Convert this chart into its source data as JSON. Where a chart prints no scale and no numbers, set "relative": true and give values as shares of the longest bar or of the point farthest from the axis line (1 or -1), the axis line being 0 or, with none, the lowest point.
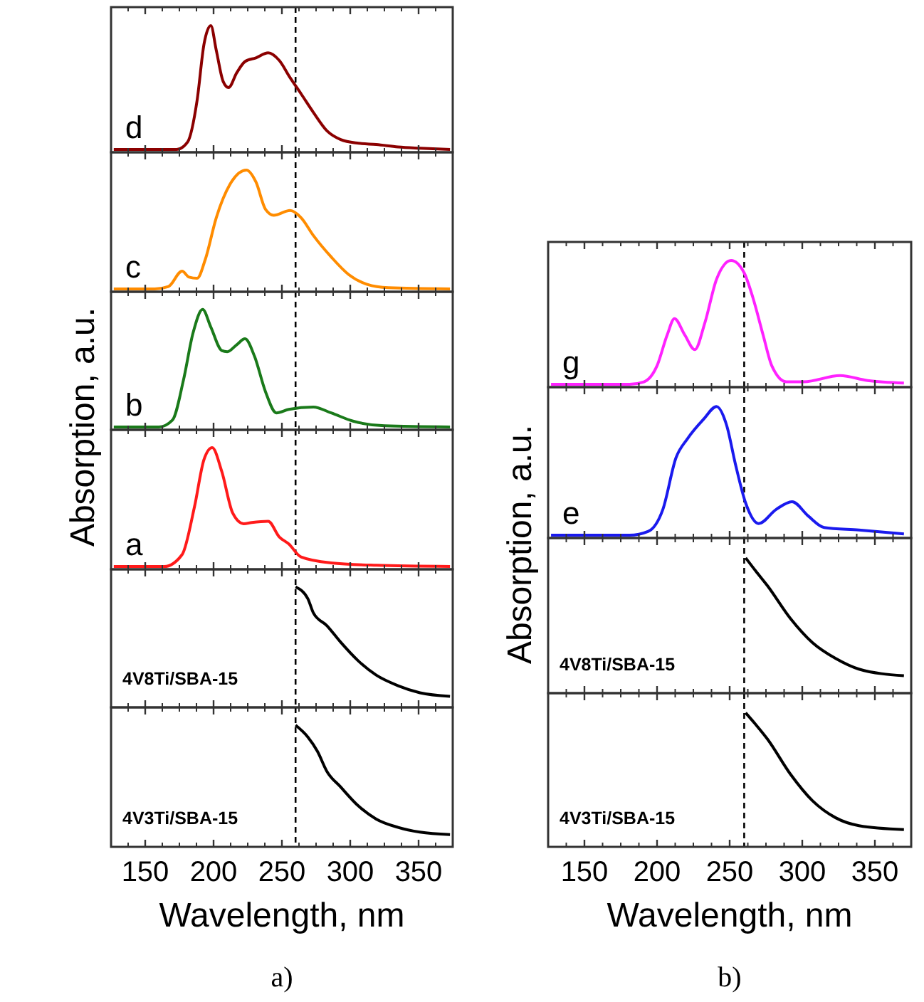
{
  "chart_data": [
    {
      "type": "line",
      "relative": true,
      "xlim": [
        125,
        375
      ],
      "xticks": [
        150,
        200,
        250,
        300,
        350
      ],
      "tick_labels": false,
      "ref_lines": [
        {
          "axis": "x",
          "value": 260,
          "color": "#000000",
          "line_style": "dashed"
        }
      ],
      "x": [
        127,
        173,
        181,
        188,
        193,
        198,
        202,
        207,
        211,
        217,
        223,
        231,
        240,
        248,
        256,
        264,
        273,
        283,
        293,
        306,
        319,
        335,
        351,
        373
      ],
      "series": [
        {
          "name": "d",
          "color": "#8b0000",
          "values": [
            0,
            0,
            0.06,
            0.4,
            0.85,
            1.0,
            0.8,
            0.55,
            0.5,
            0.62,
            0.71,
            0.74,
            0.78,
            0.72,
            0.58,
            0.45,
            0.3,
            0.15,
            0.08,
            0.05,
            0.04,
            0.02,
            0.01,
            0
          ]
        }
      ]
    },
    {
      "type": "line",
      "relative": true,
      "xlim": [
        125,
        375
      ],
      "xticks": [
        150,
        200,
        250,
        300,
        350
      ],
      "tick_labels": false,
      "ref_lines": [
        {
          "axis": "x",
          "value": 260,
          "color": "#000000",
          "line_style": "dashed"
        }
      ],
      "x": [
        127,
        157,
        167,
        177,
        182,
        188,
        194,
        202,
        212,
        224,
        231,
        238,
        244,
        256,
        264,
        273,
        286,
        299,
        312,
        328,
        373
      ],
      "series": [
        {
          "name": "c",
          "color": "#ff8c00",
          "values": [
            0,
            0,
            0.02,
            0.15,
            0.1,
            0.09,
            0.25,
            0.6,
            0.88,
            1.0,
            0.9,
            0.67,
            0.62,
            0.66,
            0.6,
            0.45,
            0.27,
            0.12,
            0.04,
            0.01,
            0
          ]
        }
      ]
    },
    {
      "type": "line",
      "relative": true,
      "xlim": [
        125,
        375
      ],
      "xticks": [
        150,
        200,
        250,
        300,
        350
      ],
      "tick_labels": false,
      "ref_lines": [
        {
          "axis": "x",
          "value": 260,
          "color": "#000000",
          "line_style": "dashed"
        }
      ],
      "x": [
        127,
        160,
        170,
        178,
        185,
        192,
        198,
        206,
        210,
        217,
        223,
        230,
        238,
        246,
        255,
        273,
        286,
        302,
        325,
        373
      ],
      "series": [
        {
          "name": "b",
          "color": "#1a7a1a",
          "values": [
            0,
            0,
            0.06,
            0.4,
            0.8,
            1.0,
            0.85,
            0.65,
            0.64,
            0.7,
            0.75,
            0.6,
            0.3,
            0.12,
            0.15,
            0.17,
            0.12,
            0.05,
            0.01,
            0
          ]
        }
      ]
    },
    {
      "type": "line",
      "relative": true,
      "xlim": [
        125,
        375
      ],
      "xticks": [
        150,
        200,
        250,
        300,
        350
      ],
      "tick_labels": false,
      "ref_lines": [
        {
          "axis": "x",
          "value": 260,
          "color": "#000000",
          "line_style": "dashed"
        }
      ],
      "x": [
        127,
        164,
        177,
        186,
        193,
        199,
        206,
        214,
        222,
        228,
        240,
        248,
        255,
        264,
        286,
        319,
        373
      ],
      "series": [
        {
          "name": "a",
          "color": "#ff1a1a",
          "values": [
            0,
            0,
            0.1,
            0.5,
            0.9,
            1.0,
            0.8,
            0.45,
            0.36,
            0.37,
            0.38,
            0.25,
            0.19,
            0.08,
            0.03,
            0.01,
            0
          ]
        }
      ]
    },
    {
      "type": "line",
      "relative": true,
      "xlim": [
        125,
        375
      ],
      "xticks": [
        150,
        200,
        250,
        300,
        350
      ],
      "tick_labels": false,
      "ref_lines": [
        {
          "axis": "x",
          "value": 260,
          "color": "#000000",
          "line_style": "dashed"
        }
      ],
      "x": [
        260,
        269,
        273,
        283,
        293,
        306,
        319,
        335,
        351,
        373
      ],
      "series": [
        {
          "name": "4V8Ti/SBA-15",
          "color": "#000000",
          "values": [
            1.0,
            0.9,
            0.78,
            0.67,
            0.53,
            0.37,
            0.25,
            0.16,
            0.1,
            0.07
          ]
        }
      ]
    },
    {
      "type": "line",
      "relative": true,
      "xlim": [
        125,
        375
      ],
      "xticks": [
        150,
        200,
        250,
        300,
        350
      ],
      "tick_labels": "x",
      "xlabel": "Wavelength, nm",
      "ylabel": "Absorption, a.u.",
      "annotations": [
        "a)"
      ],
      "ref_lines": [
        {
          "axis": "x",
          "value": 260,
          "color": "#000000",
          "line_style": "dashed"
        }
      ],
      "x": [
        260,
        269,
        276,
        283,
        293,
        306,
        319,
        335,
        351,
        373
      ],
      "series": [
        {
          "name": "4V3Ti/SBA-15",
          "color": "#000000",
          "values": [
            1.0,
            0.9,
            0.78,
            0.61,
            0.48,
            0.32,
            0.21,
            0.14,
            0.1,
            0.08
          ]
        }
      ]
    },
    {
      "type": "line",
      "relative": true,
      "xlim": [
        125,
        375
      ],
      "xticks": [
        150,
        200,
        250,
        300,
        350
      ],
      "tick_labels": false,
      "ref_lines": [
        {
          "axis": "x",
          "value": 260,
          "color": "#000000",
          "line_style": "dashed"
        }
      ],
      "x": [
        127,
        181,
        191,
        200,
        207,
        212,
        219,
        226,
        233,
        241,
        251,
        260,
        266,
        273,
        279,
        289,
        301,
        326,
        345,
        370
      ],
      "series": [
        {
          "name": "g",
          "color": "#ff22ff",
          "values": [
            0,
            0,
            0.02,
            0.15,
            0.4,
            0.53,
            0.4,
            0.28,
            0.5,
            0.85,
            1.0,
            0.9,
            0.7,
            0.4,
            0.15,
            0.02,
            0.02,
            0.07,
            0.03,
            0.01
          ]
        }
      ]
    },
    {
      "type": "line",
      "relative": true,
      "xlim": [
        125,
        375
      ],
      "xticks": [
        150,
        200,
        250,
        300,
        350
      ],
      "tick_labels": false,
      "ref_lines": [
        {
          "axis": "x",
          "value": 260,
          "color": "#000000",
          "line_style": "dashed"
        }
      ],
      "x": [
        127,
        181,
        194,
        204,
        213,
        221,
        232,
        241,
        248,
        254,
        261,
        270,
        282,
        293,
        304,
        315,
        339,
        370
      ],
      "series": [
        {
          "name": "e",
          "color": "#1a1aee",
          "values": [
            0,
            0,
            0.03,
            0.2,
            0.6,
            0.75,
            0.9,
            1.0,
            0.85,
            0.55,
            0.25,
            0.09,
            0.2,
            0.26,
            0.15,
            0.06,
            0.04,
            0.01
          ]
        }
      ]
    },
    {
      "type": "line",
      "relative": true,
      "xlim": [
        125,
        375
      ],
      "xticks": [
        150,
        200,
        250,
        300,
        350
      ],
      "tick_labels": false,
      "ref_lines": [
        {
          "axis": "x",
          "value": 260,
          "color": "#000000",
          "line_style": "dashed"
        }
      ],
      "x": [
        261,
        268,
        276,
        292,
        307,
        323,
        339,
        370
      ],
      "series": [
        {
          "name": "4V8Ti/SBA-15",
          "color": "#000000",
          "values": [
            1.0,
            0.9,
            0.79,
            0.54,
            0.36,
            0.24,
            0.16,
            0.11
          ]
        }
      ]
    },
    {
      "type": "line",
      "relative": true,
      "xlim": [
        125,
        375
      ],
      "xticks": [
        150,
        200,
        250,
        300,
        350
      ],
      "tick_labels": "x",
      "xlabel": "Wavelength, nm",
      "ylabel": "Absorption, a.u.",
      "annotations": [
        "b)"
      ],
      "ref_lines": [
        {
          "axis": "x",
          "value": 260,
          "color": "#000000",
          "line_style": "dashed"
        }
      ],
      "x": [
        261,
        268,
        276,
        292,
        307,
        323,
        339,
        370
      ],
      "series": [
        {
          "name": "4V3Ti/SBA-15",
          "color": "#000000",
          "values": [
            1.0,
            0.91,
            0.8,
            0.53,
            0.33,
            0.2,
            0.14,
            0.11
          ]
        }
      ]
    }
  ]
}
